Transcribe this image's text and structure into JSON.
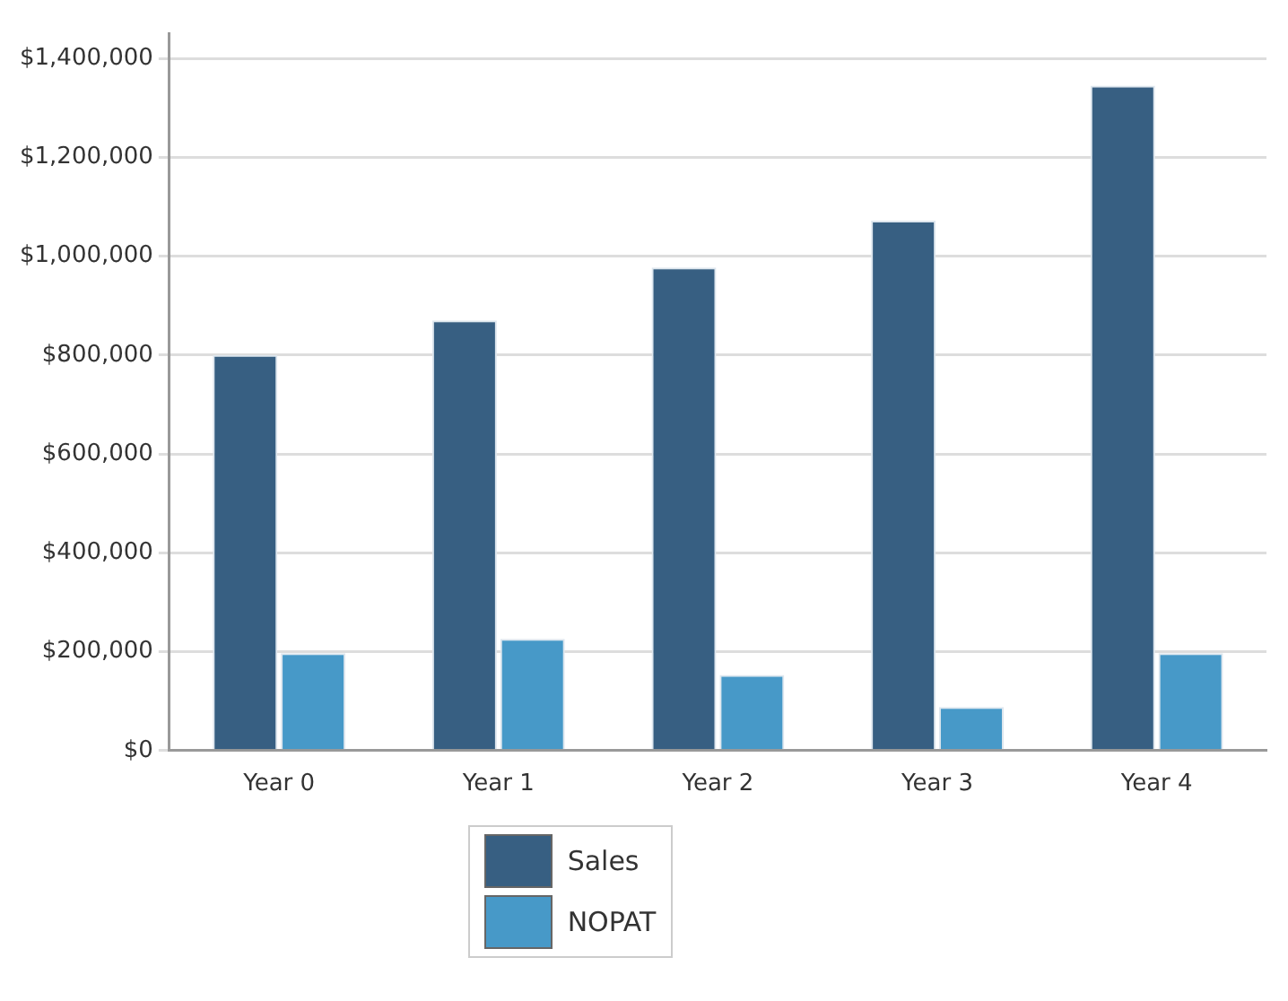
{
  "chart_data": {
    "type": "bar",
    "categories": [
      "Year 0",
      "Year 1",
      "Year 2",
      "Year 3",
      "Year 4"
    ],
    "series": [
      {
        "name": "Sales",
        "color": "#375f82",
        "values": [
          800000,
          870000,
          977000,
          1072000,
          1345000
        ]
      },
      {
        "name": "NOPAT",
        "color": "#4799c8",
        "values": [
          197000,
          226000,
          153000,
          88000,
          197000
        ]
      }
    ],
    "ylim": [
      0,
      1450000
    ],
    "yticks": [
      {
        "value": 0,
        "label": "$0"
      },
      {
        "value": 200000,
        "label": "$200,000"
      },
      {
        "value": 400000,
        "label": "$400,000"
      },
      {
        "value": 600000,
        "label": "$600,000"
      },
      {
        "value": 800000,
        "label": "$800,000"
      },
      {
        "value": 1000000,
        "label": "$1,000,000"
      },
      {
        "value": 1200000,
        "label": "$1,200,000"
      },
      {
        "value": 1400000,
        "label": "$1,400,000"
      }
    ],
    "grid": "y",
    "legend": "bottom"
  }
}
